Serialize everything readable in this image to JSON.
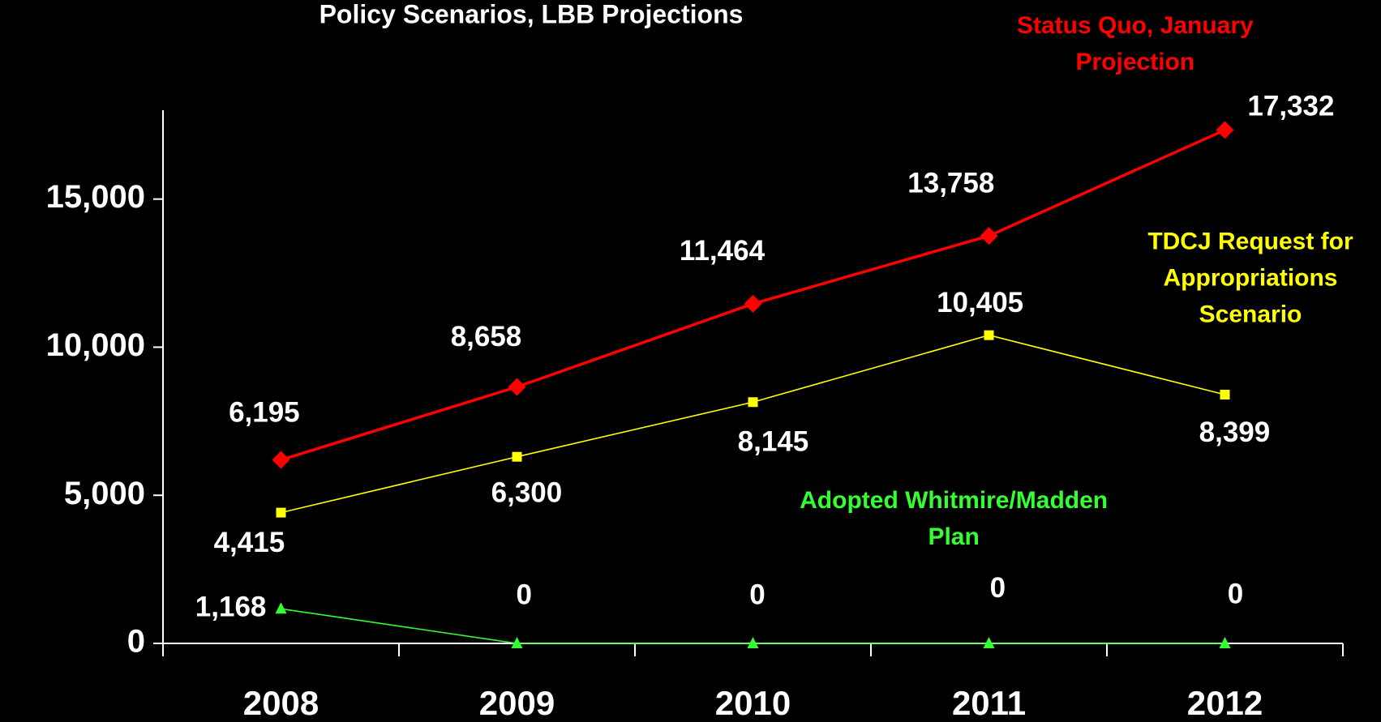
{
  "chart_data": {
    "type": "line",
    "title": "Policy Scenarios, LBB Projections",
    "categories": [
      "2008",
      "2009",
      "2010",
      "2011",
      "2012"
    ],
    "ylim": [
      0,
      18000
    ],
    "yticks": [
      0,
      {
        "value": 5000,
        "label": "5,000"
      },
      {
        "value": 10000,
        "label": "10,000"
      },
      {
        "value": 15000,
        "label": "15,000"
      }
    ],
    "series": [
      {
        "name": "Status Quo, January Projection",
        "color": "#ff0000",
        "marker": "diamond",
        "values": [
          6195,
          8658,
          11464,
          13758,
          17332
        ],
        "value_labels": [
          "6,195",
          "8,658",
          "11,464",
          "13,758",
          "17,332"
        ]
      },
      {
        "name": "TDCJ Request for Appropriations Scenario",
        "color": "#ffff00",
        "marker": "square",
        "values": [
          4415,
          6300,
          8145,
          10405,
          8399
        ],
        "value_labels": [
          "4,415",
          "6,300",
          "8,145",
          "10,405",
          "8,399"
        ]
      },
      {
        "name": "Adopted Whitmire/Madden Plan",
        "color": "#33ff33",
        "marker": "triangle",
        "values": [
          1168,
          0,
          0,
          0,
          0
        ],
        "value_labels": [
          "1,168",
          "0",
          "0",
          "0",
          "0"
        ]
      }
    ]
  }
}
